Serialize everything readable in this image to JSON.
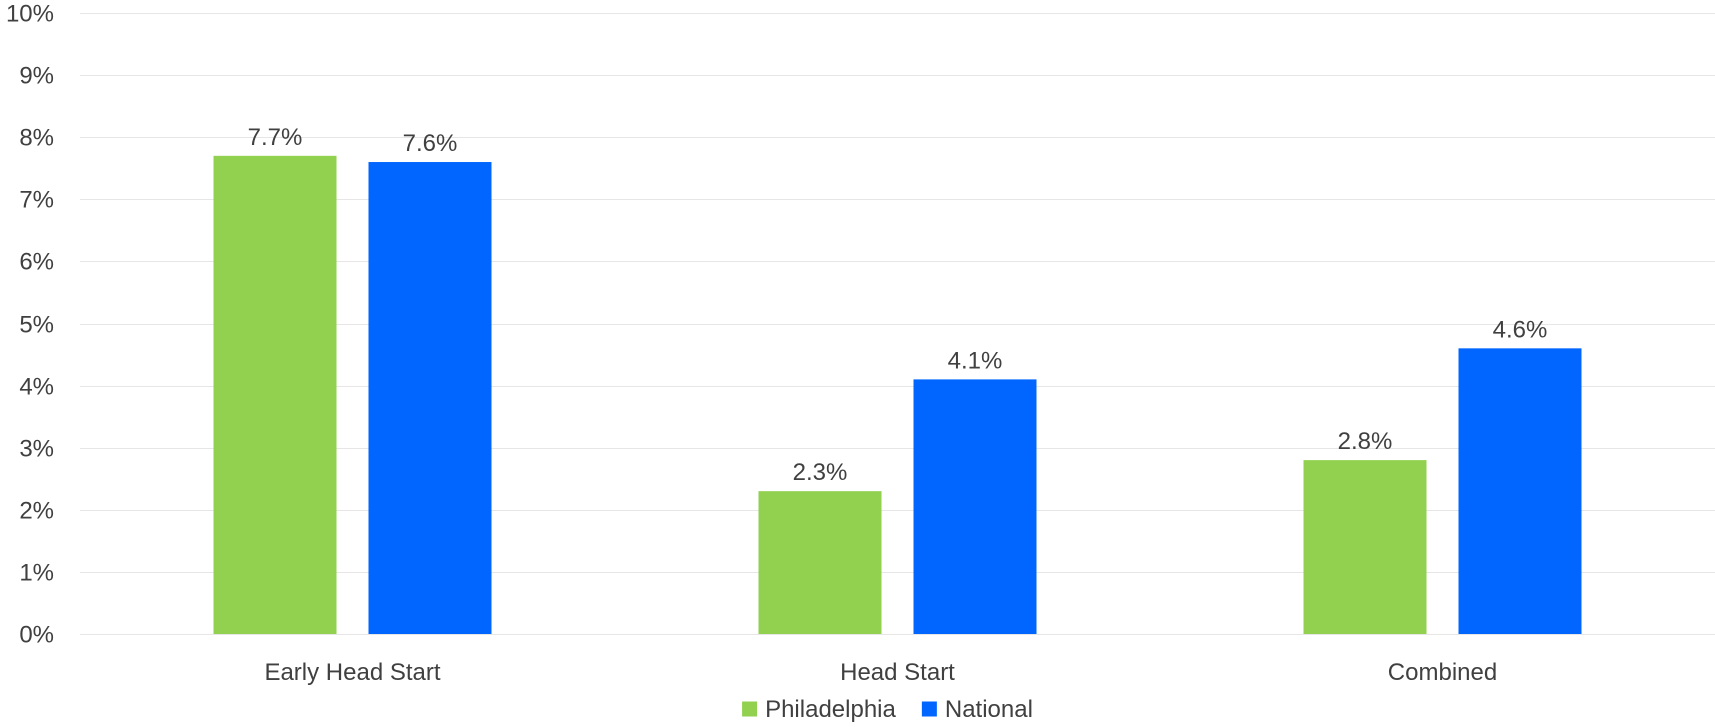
{
  "chart_data": {
    "type": "bar",
    "categories": [
      "Early Head Start",
      "Head Start",
      "Combined"
    ],
    "series": [
      {
        "name": "Philadelphia",
        "color": "#92d050",
        "values": [
          7.7,
          2.3,
          2.8
        ],
        "labels": [
          "7.7%",
          "2.3%",
          "2.8%"
        ]
      },
      {
        "name": "National",
        "color": "#0066ff",
        "values": [
          7.6,
          4.1,
          4.6
        ],
        "labels": [
          "7.6%",
          "4.1%",
          "4.6%"
        ]
      }
    ],
    "ylim": [
      0,
      10
    ],
    "yticks": [
      0,
      1,
      2,
      3,
      4,
      5,
      6,
      7,
      8,
      9,
      10
    ],
    "ytick_labels": [
      "0%",
      "1%",
      "2%",
      "3%",
      "4%",
      "5%",
      "6%",
      "7%",
      "8%",
      "9%",
      "10%"
    ],
    "grid": true,
    "legend_position": "bottom"
  }
}
